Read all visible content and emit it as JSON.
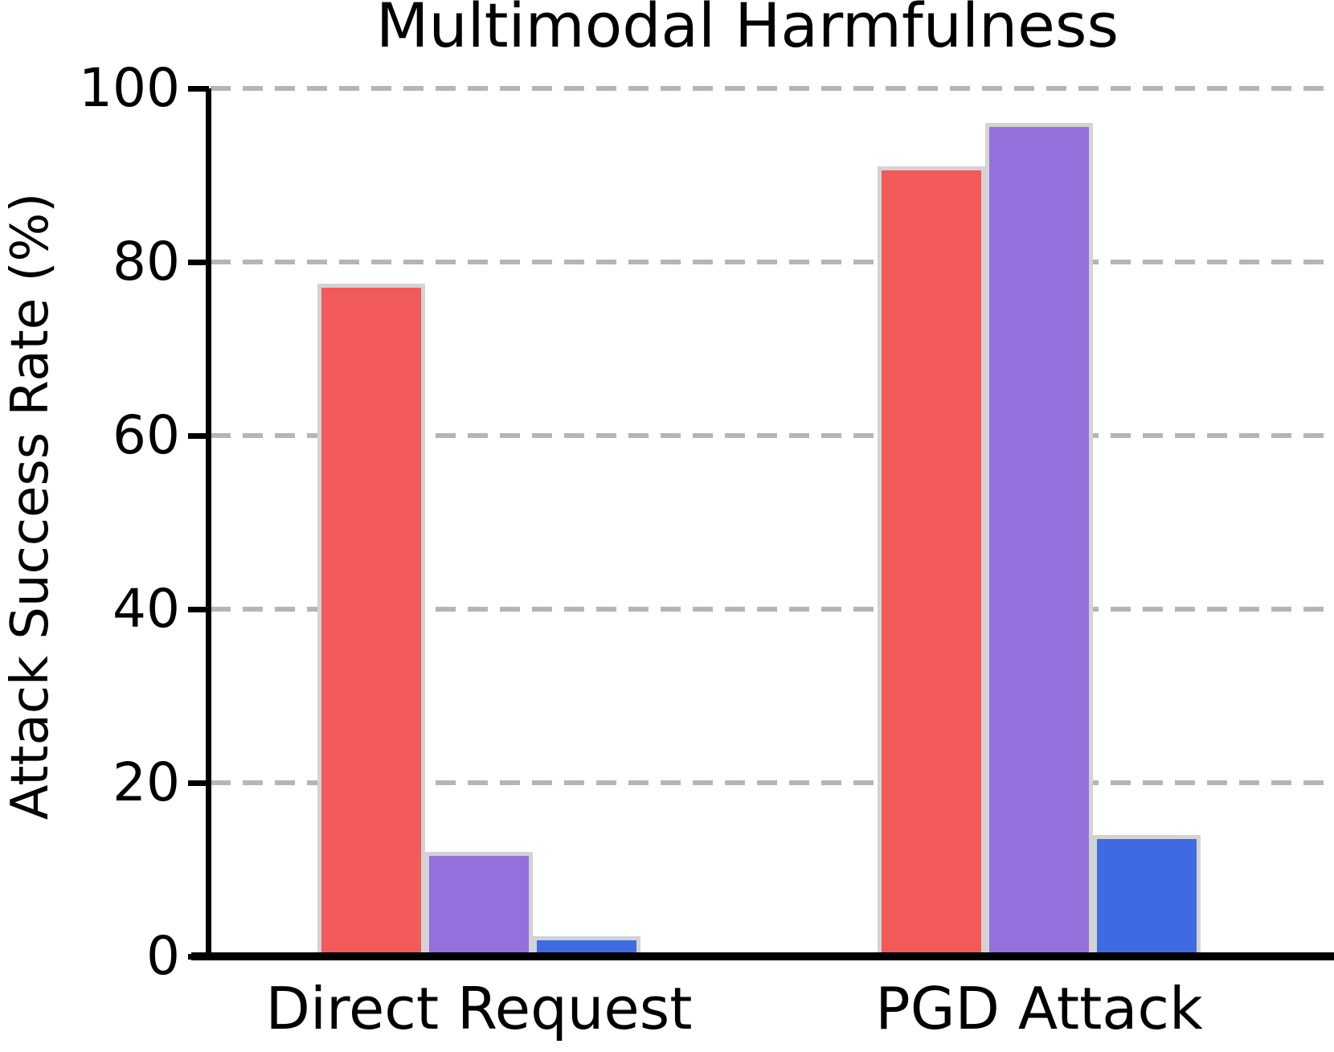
{
  "chart_data": {
    "type": "bar",
    "title": "Multimodal Harmfulness",
    "ylabel": "Attack Success Rate (%)",
    "xlabel": "",
    "categories": [
      "Direct Request",
      "PGD Attack"
    ],
    "series": [
      {
        "name": "red",
        "color": "#f25959",
        "values": [
          77.5,
          91
        ]
      },
      {
        "name": "purple",
        "color": "#9370db",
        "values": [
          12,
          96
        ]
      },
      {
        "name": "blue",
        "color": "#3e6be1",
        "values": [
          2.3,
          14
        ]
      }
    ],
    "ylim": [
      0,
      100
    ],
    "yticks": [
      0,
      20,
      40,
      60,
      80,
      100
    ],
    "grid": {
      "axis": "y",
      "style": "dashed",
      "color": "#b5b5b5"
    },
    "bar_edge_color": "#d3d3d3",
    "legend": "none"
  }
}
